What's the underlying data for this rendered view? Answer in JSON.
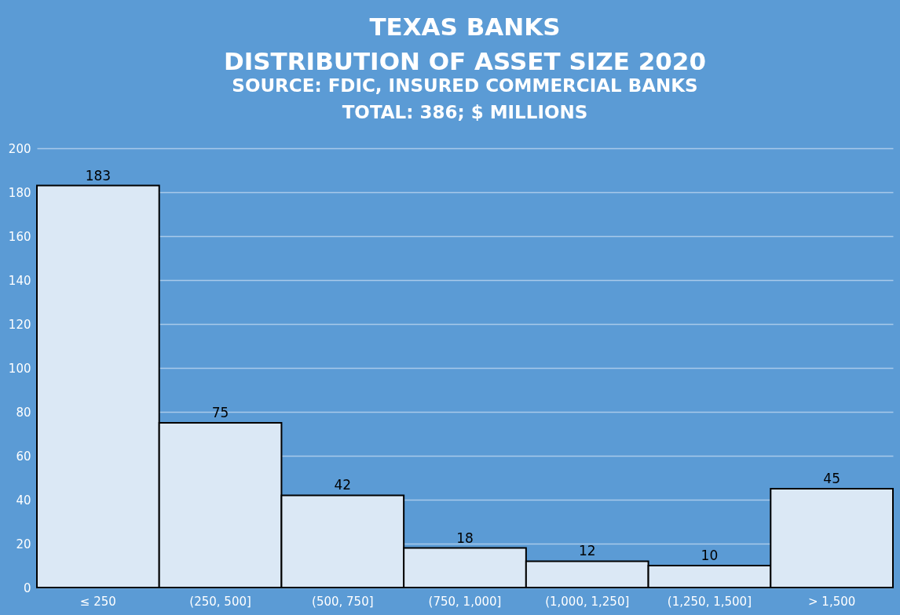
{
  "chart_data": {
    "type": "bar",
    "title": "TEXAS BANKS",
    "subtitle": "DISTRIBUTION OF ASSET SIZE 2020",
    "annotations": [
      "SOURCE: FDIC, INSURED COMMERCIAL BANKS",
      "TOTAL: 386; $ MILLIONS"
    ],
    "categories": [
      "≤ 250",
      "(250, 500]",
      "(500, 750]",
      "(750, 1,000]",
      "(1,000, 1,250]",
      "(1,250, 1,500]",
      "> 1,500"
    ],
    "values": [
      183,
      75,
      42,
      18,
      12,
      10,
      45
    ],
    "color": "#dbe8f5",
    "ylim": [
      0,
      200
    ],
    "yticks": [
      0,
      20,
      40,
      60,
      80,
      100,
      120,
      140,
      160,
      180,
      200
    ],
    "grid": "y",
    "data_labels": true
  }
}
